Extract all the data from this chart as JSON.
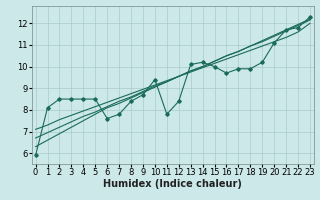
{
  "title": "",
  "xlabel": "Humidex (Indice chaleur)",
  "ylabel": "",
  "bg_color": "#cce8e8",
  "grid_color": "#aacccc",
  "line_color": "#1a6b5a",
  "x_data": [
    0,
    1,
    2,
    3,
    4,
    5,
    6,
    7,
    8,
    9,
    10,
    11,
    12,
    13,
    14,
    15,
    16,
    17,
    18,
    19,
    20,
    21,
    22,
    23
  ],
  "y_line1": [
    5.9,
    8.1,
    8.5,
    8.5,
    8.5,
    8.5,
    7.6,
    7.8,
    8.4,
    8.7,
    9.4,
    7.8,
    8.4,
    10.1,
    10.2,
    10.0,
    9.7,
    9.9,
    9.9,
    10.2,
    11.1,
    11.7,
    11.8,
    12.3
  ],
  "y_linear1": [
    6.3,
    6.6,
    6.9,
    7.2,
    7.5,
    7.8,
    8.1,
    8.3,
    8.55,
    8.8,
    9.05,
    9.3,
    9.55,
    9.8,
    10.0,
    10.25,
    10.5,
    10.7,
    10.95,
    11.2,
    11.45,
    11.7,
    11.95,
    12.2
  ],
  "y_linear2": [
    6.7,
    6.95,
    7.2,
    7.45,
    7.7,
    7.9,
    8.15,
    8.4,
    8.6,
    8.85,
    9.1,
    9.3,
    9.55,
    9.8,
    10.0,
    10.25,
    10.5,
    10.7,
    10.95,
    11.15,
    11.4,
    11.65,
    11.9,
    12.15
  ],
  "y_linear3": [
    7.1,
    7.3,
    7.55,
    7.75,
    7.95,
    8.15,
    8.35,
    8.55,
    8.75,
    8.95,
    9.15,
    9.35,
    9.55,
    9.75,
    9.95,
    10.15,
    10.35,
    10.55,
    10.75,
    10.95,
    11.15,
    11.35,
    11.6,
    12.0
  ],
  "ylim": [
    5.5,
    12.8
  ],
  "yticks": [
    6,
    7,
    8,
    9,
    10,
    11,
    12
  ],
  "xlim": [
    -0.3,
    23.3
  ],
  "xticks": [
    0,
    1,
    2,
    3,
    4,
    5,
    6,
    7,
    8,
    9,
    10,
    11,
    12,
    13,
    14,
    15,
    16,
    17,
    18,
    19,
    20,
    21,
    22,
    23
  ],
  "xlabel_fontsize": 7,
  "tick_fontsize": 6
}
